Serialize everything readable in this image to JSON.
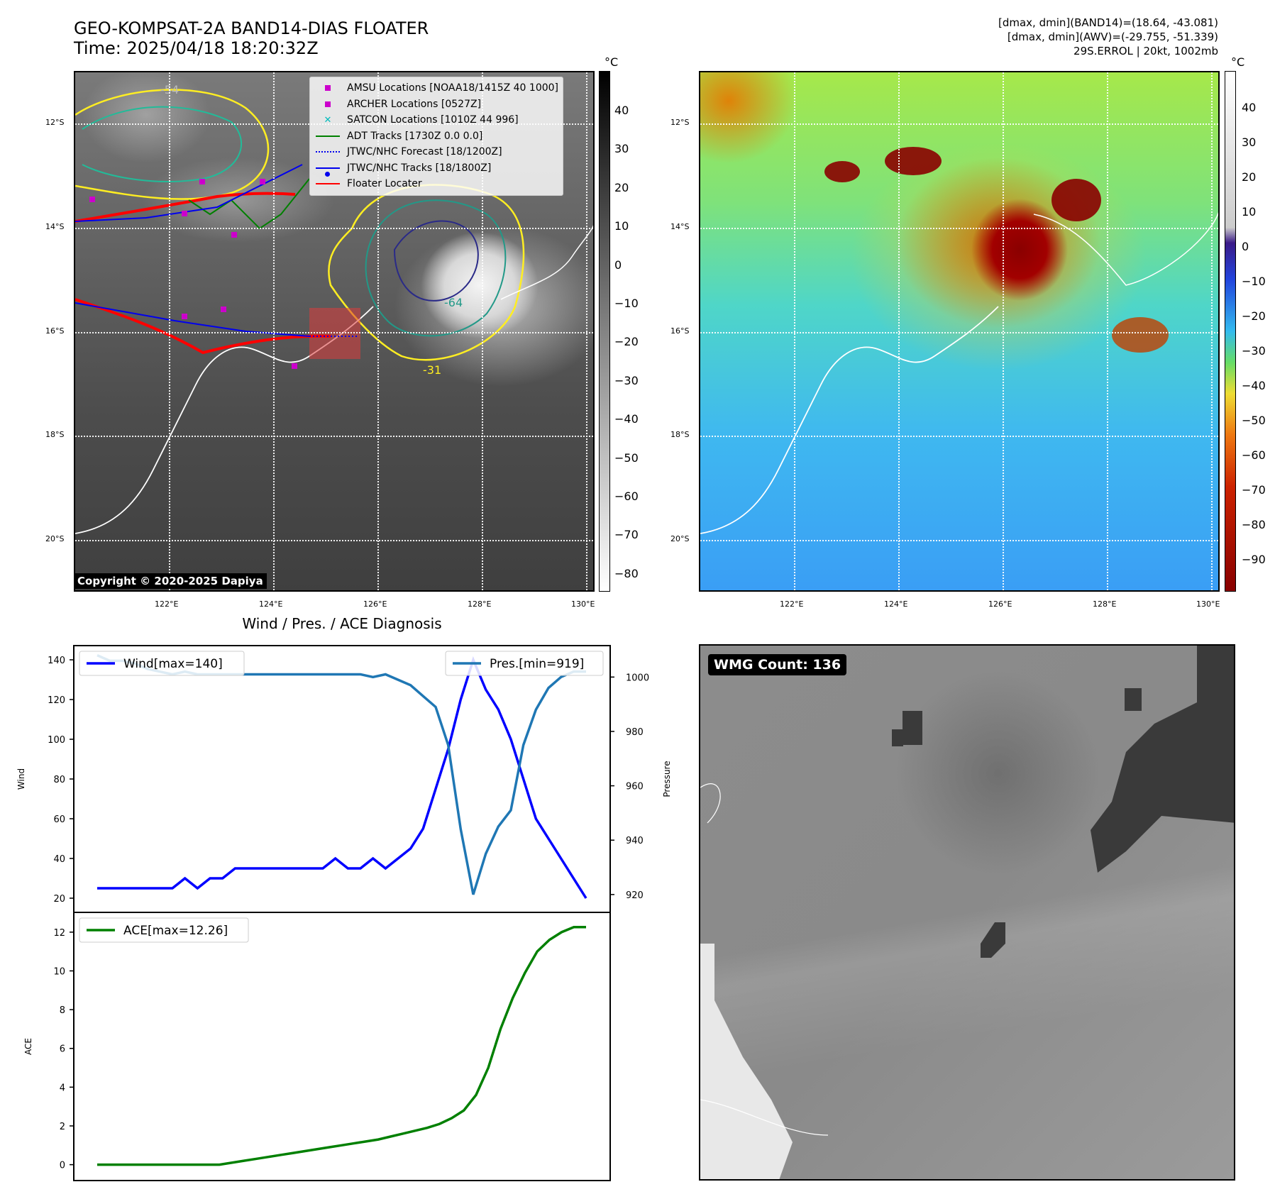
{
  "header": {
    "title_line1": "GEO-KOMPSAT-2A BAND14-DIAS FLOATER",
    "title_line2": "Time: 2025/04/18 18:20:32Z",
    "info_line1": "[dmax, dmin](BAND14)=(18.64, -43.081)",
    "info_line2": "[dmax, dmin](AWV)=(-29.755, -51.339)",
    "info_line3": "29S.ERROL | 20kt, 1002mb"
  },
  "map": {
    "lat_labels": [
      "12°S",
      "14°S",
      "16°S",
      "18°S",
      "20°S"
    ],
    "lon_labels": [
      "122°E",
      "124°E",
      "126°E",
      "128°E",
      "130°E"
    ],
    "contour_labels": [
      "-31",
      "-64",
      "-54",
      "-31"
    ],
    "copyright": "Copyright © 2020-2025 Dapiya"
  },
  "legend": {
    "items": [
      {
        "label": "AMSU Locations [NOAA18/1415Z 40 1000]",
        "symbol": "square",
        "color": "#cc00cc"
      },
      {
        "label": "ARCHER Locations [0527Z]",
        "symbol": "square",
        "color": "#cc00cc"
      },
      {
        "label": "SATCON Locations [1010Z 44 996]",
        "symbol": "x",
        "color": "#00bbbb"
      },
      {
        "label": "ADT Tracks [1730Z 0.0 0.0]",
        "symbol": "line",
        "color": "#008000"
      },
      {
        "label": "JTWC/NHC Forecast [18/1200Z]",
        "symbol": "dotted",
        "color": "#0000ee"
      },
      {
        "label": "JTWC/NHC Tracks [18/1800Z]",
        "symbol": "line-dot",
        "color": "#0000ee"
      },
      {
        "label": "Floater Locater",
        "symbol": "line",
        "color": "#ff0000"
      }
    ]
  },
  "colorbar_gray": {
    "unit": "°C",
    "ticks": [
      "40",
      "30",
      "20",
      "10",
      "0",
      "−10",
      "−20",
      "−30",
      "−40",
      "−50",
      "−60",
      "−70",
      "−80"
    ]
  },
  "colorbar_color": {
    "unit": "°C",
    "ticks": [
      "40",
      "30",
      "20",
      "10",
      "0",
      "−10",
      "−20",
      "−30",
      "−40",
      "−50",
      "−60",
      "−70",
      "−80",
      "−90"
    ]
  },
  "diag": {
    "title": "Wind / Pres. / ACE Diagnosis",
    "wind_legend": "Wind[max=140]",
    "pres_legend": "Pres.[min=919]",
    "ace_legend": "ACE[max=12.26]",
    "wind_ylabel": "Wind",
    "pres_ylabel": "Pressure",
    "ace_ylabel": "ACE",
    "wmg_count": "WMG Count: 136"
  },
  "colors": {
    "wind": "#0000ff",
    "pressure": "#1f77b4",
    "ace": "#008000",
    "contour_yellow": "#ffee22",
    "contour_teal": "#229988",
    "contour_navy": "#2a2a88"
  },
  "chart_data": [
    {
      "type": "line",
      "title": "Wind / Pres. / ACE Diagnosis",
      "ylabel": "Wind",
      "y2label": "Pressure",
      "ylim": [
        15,
        145
      ],
      "y2lim": [
        915,
        1010
      ],
      "yticks": [
        20,
        40,
        60,
        80,
        100,
        120,
        140
      ],
      "y2ticks": [
        920,
        940,
        960,
        980,
        1000
      ],
      "series": [
        {
          "name": "Wind[max=140]",
          "axis": "left",
          "values": [
            25,
            25,
            25,
            25,
            25,
            25,
            25,
            30,
            25,
            30,
            30,
            35,
            35,
            35,
            35,
            35,
            35,
            35,
            35,
            40,
            35,
            35,
            40,
            35,
            40,
            45,
            55,
            75,
            95,
            120,
            140,
            125,
            115,
            100,
            80,
            60,
            50,
            40,
            30,
            20
          ]
        },
        {
          "name": "Pres.[min=919]",
          "axis": "right",
          "values": [
            1008,
            1006,
            1006,
            1005,
            1003,
            1002,
            1001,
            1002,
            1001,
            1001,
            1001,
            1001,
            1001,
            1001,
            1001,
            1001,
            1001,
            1001,
            1001,
            1001,
            1001,
            1001,
            1000,
            1001,
            999,
            997,
            993,
            989,
            975,
            944,
            920,
            935,
            945,
            951,
            975,
            988,
            996,
            1000,
            1002,
            1002
          ]
        }
      ]
    },
    {
      "type": "line",
      "ylabel": "ACE",
      "ylim": [
        -0.6,
        12.8
      ],
      "yticks": [
        0,
        2,
        4,
        6,
        8,
        10,
        12
      ],
      "series": [
        {
          "name": "ACE[max=12.26]",
          "values": [
            0,
            0,
            0,
            0,
            0,
            0,
            0,
            0,
            0,
            0,
            0,
            0.1,
            0.2,
            0.3,
            0.4,
            0.5,
            0.6,
            0.7,
            0.8,
            0.9,
            1.0,
            1.1,
            1.2,
            1.3,
            1.45,
            1.6,
            1.75,
            1.9,
            2.1,
            2.4,
            2.8,
            3.6,
            5.0,
            7.0,
            8.6,
            9.9,
            11.0,
            11.6,
            12.0,
            12.26,
            12.26
          ]
        }
      ]
    }
  ]
}
